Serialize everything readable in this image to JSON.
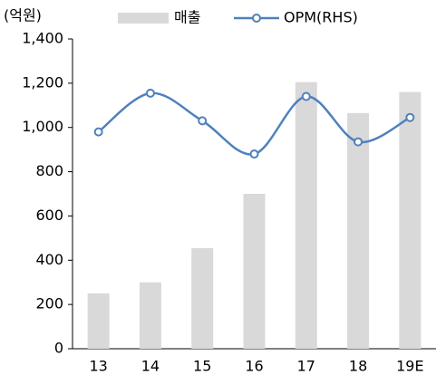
{
  "chart_data": {
    "type": "bar_line",
    "y_label": "(억원)",
    "categories": [
      "13",
      "14",
      "15",
      "16",
      "17",
      "18",
      "19E"
    ],
    "series": [
      {
        "name": "매출",
        "type": "bar",
        "color": "#d9d9d9",
        "values": [
          250,
          300,
          455,
          700,
          1205,
          1065,
          1160
        ]
      },
      {
        "name": "OPM(RHS)",
        "type": "line",
        "color": "#4f81bd",
        "values": [
          980,
          1155,
          1030,
          880,
          1140,
          935,
          1045
        ]
      }
    ],
    "ylim": [
      0,
      1400
    ],
    "yticks": [
      0,
      200,
      400,
      600,
      800,
      {
        "value": 1000,
        "label": "1,000"
      },
      {
        "value": 1200,
        "label": "1,200"
      },
      {
        "value": 1400,
        "label": "1,400"
      }
    ],
    "legend": "top"
  }
}
